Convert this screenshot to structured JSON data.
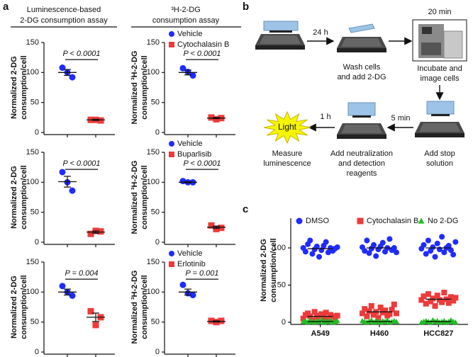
{
  "panel_labels": [
    "a",
    "b",
    "c"
  ],
  "panel_a_headers": [
    [
      "Luminescence-based",
      "2-DG consumption assay"
    ],
    [
      "³H-2-DG",
      "consumption assay"
    ]
  ],
  "chart_data": [
    {
      "type": "dot",
      "y_label": [
        "Normalized 2-DG",
        "consumption/cell"
      ],
      "ylim": [
        0,
        150
      ],
      "yticks": [
        0,
        50,
        100,
        150
      ],
      "annotation": "P < 0.0001",
      "series": [
        {
          "color": "#1f2bff",
          "marker": "circle",
          "values": [
            108,
            100,
            92
          ],
          "mean": 100,
          "sem": 5
        },
        {
          "color": "#ee3a3a",
          "marker": "square",
          "values": [
            21,
            21,
            20
          ],
          "mean": 21,
          "sem": 1
        }
      ]
    },
    {
      "type": "dot",
      "y_label": [
        "Normalized ³H-2-DG",
        "consumption/cell"
      ],
      "ylim": [
        0,
        150
      ],
      "yticks": [
        0,
        50,
        100,
        150
      ],
      "annotation": "P < 0.0001",
      "series": [
        {
          "name": "Vehicle",
          "color": "#1f2bff",
          "marker": "circle",
          "values": [
            107,
            101,
            95
          ],
          "mean": 100,
          "sem": 4
        },
        {
          "name": "Cytochalasin B",
          "color": "#ee3a3a",
          "marker": "square",
          "values": [
            25,
            22,
            24
          ],
          "mean": 24,
          "sem": 1
        }
      ]
    },
    {
      "type": "dot",
      "y_label": [
        "Normalized 2-DG",
        "consumption/cell"
      ],
      "ylim": [
        0,
        150
      ],
      "yticks": [
        0,
        50,
        100,
        150
      ],
      "annotation": "P < 0.0001",
      "series": [
        {
          "color": "#1f2bff",
          "marker": "circle",
          "values": [
            117,
            100,
            86
          ],
          "mean": 101,
          "sem": 9
        },
        {
          "color": "#ee3a3a",
          "marker": "square",
          "values": [
            14,
            19,
            18
          ],
          "mean": 17,
          "sem": 2
        }
      ]
    },
    {
      "type": "dot",
      "y_label": [
        "Normalized ³H-2-DG",
        "consumption/cell"
      ],
      "ylim": [
        0,
        150
      ],
      "yticks": [
        0,
        50,
        100,
        150
      ],
      "annotation": "P < 0.0001",
      "series": [
        {
          "name": "Vehicle",
          "color": "#1f2bff",
          "marker": "circle",
          "values": [
            102,
            100,
            100
          ],
          "mean": 100,
          "sem": 1
        },
        {
          "name": "Buparlisib",
          "color": "#ee3a3a",
          "marker": "square",
          "values": [
            28,
            22,
            24
          ],
          "mean": 25,
          "sem": 2
        }
      ]
    },
    {
      "type": "dot",
      "y_label": [
        "Normalized 2-DG",
        "consumption/cell"
      ],
      "ylim": [
        0,
        150
      ],
      "yticks": [
        0,
        50,
        100,
        150
      ],
      "annotation": "P = 0.004",
      "series": [
        {
          "color": "#1f2bff",
          "marker": "circle",
          "values": [
            110,
            100,
            94
          ],
          "mean": 100,
          "sem": 5
        },
        {
          "color": "#ee3a3a",
          "marker": "square",
          "values": [
            68,
            45,
            58
          ],
          "mean": 58,
          "sem": 7
        }
      ]
    },
    {
      "type": "dot",
      "y_label": [
        "Normalized ³H-2-DG",
        "consumption/cell"
      ],
      "ylim": [
        0,
        150
      ],
      "yticks": [
        0,
        50,
        100,
        150
      ],
      "annotation": "P = 0.001",
      "series": [
        {
          "name": "Vehicle",
          "color": "#1f2bff",
          "marker": "circle",
          "values": [
            112,
            98,
            95
          ],
          "mean": 100,
          "sem": 5
        },
        {
          "name": "Erlotinib",
          "color": "#ee3a3a",
          "marker": "square",
          "values": [
            52,
            50,
            52
          ],
          "mean": 51,
          "sem": 1
        }
      ]
    },
    {
      "type": "dot",
      "y_label": [
        "Normalized 2-DG",
        "consumption/cell"
      ],
      "ylim": [
        0,
        140
      ],
      "yticks": [
        0,
        50,
        100
      ],
      "categories": [
        "A549",
        "H460",
        "HCC827"
      ],
      "series": [
        {
          "name": "DMSO",
          "color": "#1f2bff",
          "marker": "circle",
          "means": [
            99,
            100,
            100
          ],
          "values": [
            [
              100,
              95,
              105,
              110,
              92,
              98,
              102,
              88,
              97,
              103,
              108,
              94,
              100,
              96,
              99,
              101
            ],
            [
              101,
              96,
              110,
              93,
              99,
              104,
              89,
              98,
              102,
              107,
              95,
              100,
              112,
              97,
              100,
              94
            ],
            [
              99,
              104,
              92,
              110,
              96,
              101,
              88,
              106,
              98,
              115,
              94,
              100,
              103,
              97,
              91,
              108
            ]
          ]
        },
        {
          "name": "Cytochalasin B",
          "color": "#ee3a3a",
          "marker": "square",
          "means": [
            8,
            14,
            31
          ],
          "values": [
            [
              5,
              10,
              12,
              8,
              3,
              14,
              7,
              9,
              11,
              6,
              13,
              4,
              10,
              8,
              2,
              9
            ],
            [
              12,
              18,
              8,
              15,
              22,
              10,
              14,
              6,
              20,
              13,
              16,
              9,
              11,
              17,
              24,
              12
            ],
            [
              30,
              35,
              25,
              38,
              28,
              32,
              22,
              36,
              30,
              27,
              40,
              31,
              26,
              34,
              29,
              33
            ]
          ]
        },
        {
          "name": "No 2-DG",
          "color": "#22bb22",
          "marker": "triangle",
          "means": [
            1,
            1,
            1
          ],
          "values": [
            [
              1,
              2,
              0,
              3,
              1,
              0,
              2,
              1,
              4,
              0,
              2,
              1,
              3,
              0,
              1,
              2
            ],
            [
              2,
              1,
              0,
              1,
              3,
              0,
              2,
              1,
              0,
              2,
              1,
              3,
              0,
              1,
              2,
              1
            ],
            [
              0,
              1,
              2,
              1,
              0,
              3,
              1,
              2,
              0,
              1,
              2,
              0,
              1,
              3,
              1,
              0
            ]
          ]
        }
      ]
    }
  ],
  "diagram": {
    "times": [
      "24 h",
      "20 min",
      "5 min",
      "1 h"
    ],
    "light": "Light",
    "captions": [
      [
        "Wash cells",
        "and add 2-DG"
      ],
      [
        "Incubate and",
        "image cells"
      ],
      [
        "Add stop",
        "solution"
      ],
      [
        "Add neutralization",
        "and detection",
        "reagents"
      ],
      [
        "Measure",
        "luminescence"
      ]
    ]
  }
}
